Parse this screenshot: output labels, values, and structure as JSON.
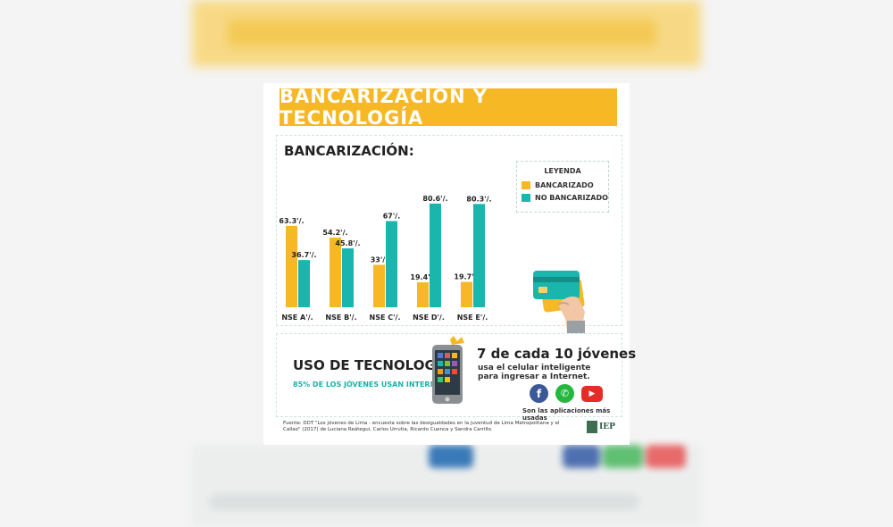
{
  "infographic": {
    "title": "BANCARIZACIÓN Y TECNOLOGÍA",
    "bank_section_title": "BANCARIZACIÓN:",
    "legend": {
      "title": "LEYENDA",
      "items": [
        {
          "label": "BANCARIZADO",
          "color": "#f6b824"
        },
        {
          "label": "NO BANCARIZADO",
          "color": "#1ab5ad"
        }
      ]
    },
    "tech": {
      "title": "USO DE TECNOLOGÍA",
      "subtitle": "85% DE LOS JÓVENES USAN INTERNET",
      "stat": "7 de cada 10 jóvenes",
      "stat_desc": "usa el celular inteligente para ingresar a Internet.",
      "apps_caption": "Son las aplicaciones más usadas",
      "apps": [
        {
          "icon": "facebook-icon",
          "glyph": "f",
          "color": "#3b5998"
        },
        {
          "icon": "whatsapp-icon",
          "glyph": "✆",
          "color": "#25b83f"
        },
        {
          "icon": "youtube-icon",
          "glyph": "▶",
          "color": "#e52d27"
        }
      ]
    },
    "source": "Fuente: DDT \"Los jóvenes de Lima : encuesta sobre las desigualdades en la juventud de Lima Metropolitana y el Callao\" (2017) de Luciana Reátegui, Carlos Urrutia, Ricardo Cuenca y Sandra Carrillo.",
    "logo_text": "IEP"
  },
  "chart_data": {
    "type": "bar",
    "categories": [
      "NSE A'/.",
      "NSE B'/.",
      "NSE C'/.",
      "NSE D'/.",
      "NSE E'/."
    ],
    "series": [
      {
        "name": "BANCARIZADO",
        "values": [
          63.3,
          54.2,
          33,
          19.4,
          19.7
        ],
        "labels": [
          "63.3'/.",
          "54.2'/.",
          "33'/.",
          "19.4'/.",
          "19.7'/."
        ],
        "color": "#f6b824"
      },
      {
        "name": "NO BANCARIZADO",
        "values": [
          36.7,
          45.8,
          67,
          80.6,
          80.3
        ],
        "labels": [
          "36.7'/.",
          "45.8'/.",
          "67'/.",
          "80.6'/.",
          "80.3'/."
        ],
        "color": "#1ab5ad"
      }
    ],
    "ylim": [
      0,
      100
    ],
    "grid": false,
    "legend_position": "top-right"
  }
}
